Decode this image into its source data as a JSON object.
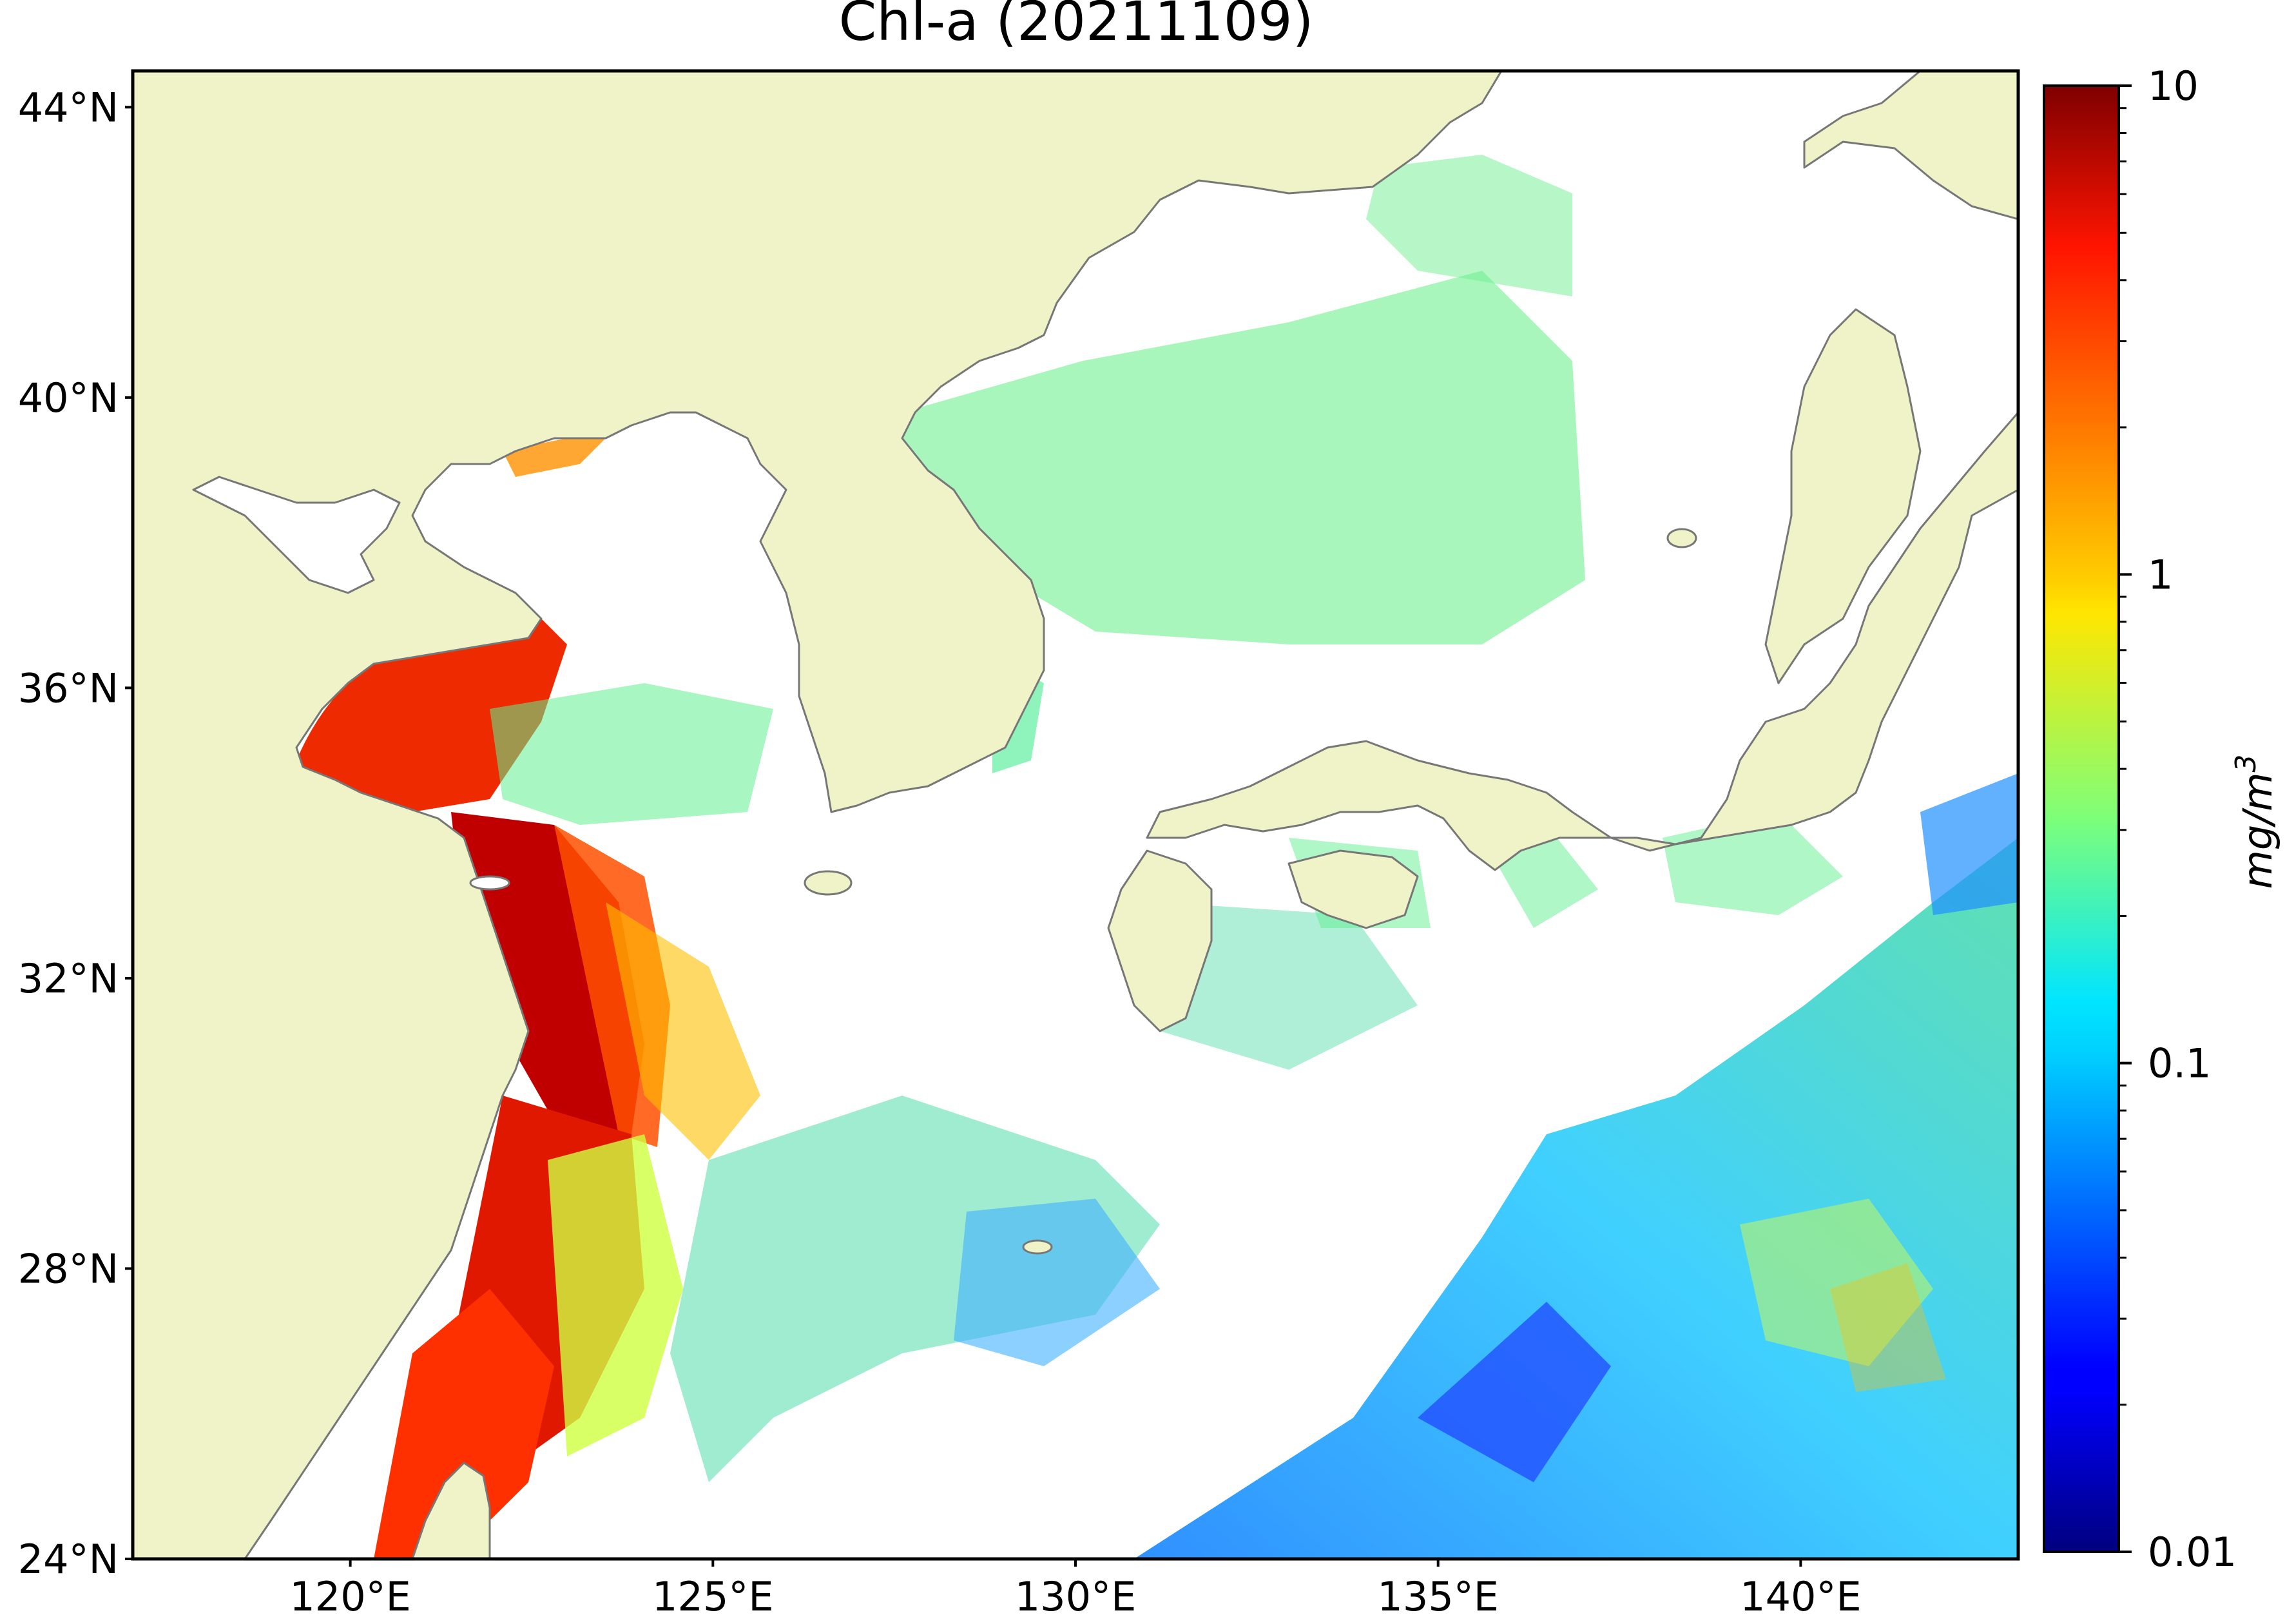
{
  "title": "Chl-a (20211109)",
  "colors": {
    "land": "#f0f3c8",
    "ocean_no_data": "#ffffff",
    "coastline": "#777777",
    "frame": "#000000"
  },
  "map": {
    "lon_range": [
      117,
      143
    ],
    "lat_range": [
      24,
      44.5
    ],
    "lat_ticks": [
      {
        "value": 44,
        "label": "44°N"
      },
      {
        "value": 40,
        "label": "40°N"
      },
      {
        "value": 36,
        "label": "36°N"
      },
      {
        "value": 32,
        "label": "32°N"
      },
      {
        "value": 28,
        "label": "28°N"
      },
      {
        "value": 24,
        "label": "24°N"
      }
    ],
    "lon_ticks": [
      {
        "value": 120,
        "label": "120°E"
      },
      {
        "value": 125,
        "label": "125°E"
      },
      {
        "value": 130,
        "label": "130°E"
      },
      {
        "value": 135,
        "label": "135°E"
      },
      {
        "value": 140,
        "label": "140°E"
      }
    ]
  },
  "colorbar": {
    "scale": "log",
    "min": 0.01,
    "max": 10,
    "colormap": "jet",
    "ticks": [
      {
        "value": 10,
        "label": "10"
      },
      {
        "value": 1,
        "label": "1"
      },
      {
        "value": 0.1,
        "label": "0.1"
      },
      {
        "value": 0.01,
        "label": "0.01"
      }
    ],
    "unit_base": "mg/m",
    "unit_exponent": "3"
  }
}
